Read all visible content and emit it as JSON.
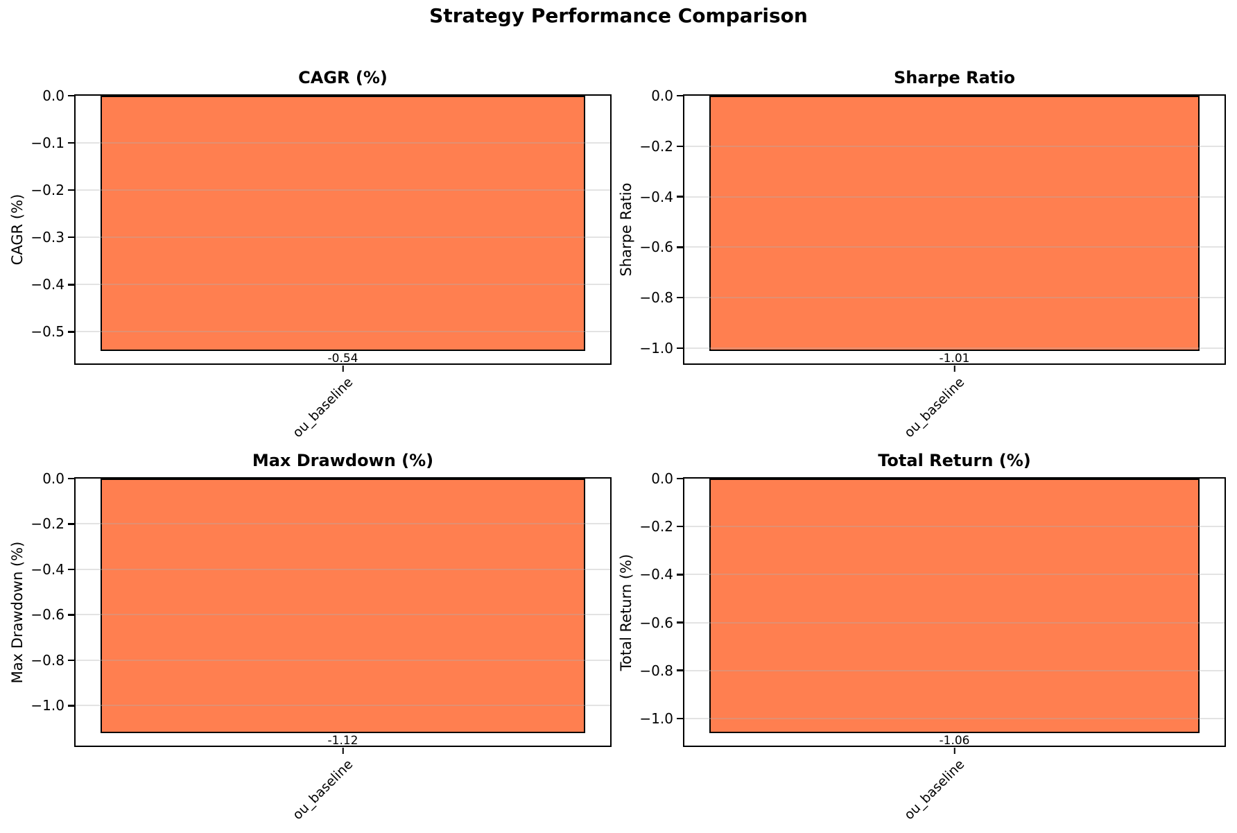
{
  "figure": {
    "suptitle": "Strategy Performance Comparison",
    "background": "#ffffff",
    "bar_color": "#ff7f50",
    "bar_edge_color": "#000000",
    "grid_color": "rgba(176,176,176,0.35)",
    "spine_color": "#000000"
  },
  "chart_data": [
    {
      "type": "bar",
      "title": "CAGR (%)",
      "ylabel": "CAGR (%)",
      "xlabel": "",
      "categories": [
        "ou_baseline"
      ],
      "values": [
        -0.54
      ],
      "value_labels": [
        "-0.54"
      ],
      "yticks": [
        0,
        -0.1,
        -0.2,
        -0.3,
        -0.4,
        -0.5
      ],
      "ytick_labels": [
        "0.0",
        "−0.1",
        "−0.2",
        "−0.3",
        "−0.4",
        "−0.5"
      ],
      "ylim": [
        -0.567,
        0
      ],
      "grid": true,
      "legend_position": "none"
    },
    {
      "type": "bar",
      "title": "Sharpe Ratio",
      "ylabel": "Sharpe Ratio",
      "xlabel": "",
      "categories": [
        "ou_baseline"
      ],
      "values": [
        -1.01
      ],
      "value_labels": [
        "-1.01"
      ],
      "yticks": [
        0,
        -0.2,
        -0.4,
        -0.6,
        -0.8,
        -1.0
      ],
      "ytick_labels": [
        "0.0",
        "−0.2",
        "−0.4",
        "−0.6",
        "−0.8",
        "−1.0"
      ],
      "ylim": [
        -1.0605,
        0
      ],
      "grid": true,
      "legend_position": "none"
    },
    {
      "type": "bar",
      "title": "Max Drawdown (%)",
      "ylabel": "Max Drawdown (%)",
      "xlabel": "",
      "categories": [
        "ou_baseline"
      ],
      "values": [
        -1.12
      ],
      "value_labels": [
        "-1.12"
      ],
      "yticks": [
        0,
        -0.2,
        -0.4,
        -0.6,
        -0.8,
        -1.0
      ],
      "ytick_labels": [
        "0.0",
        "−0.2",
        "−0.4",
        "−0.6",
        "−0.8",
        "−1.0"
      ],
      "ylim": [
        -1.176,
        0
      ],
      "grid": true,
      "legend_position": "none"
    },
    {
      "type": "bar",
      "title": "Total Return (%)",
      "ylabel": "Total Return (%)",
      "xlabel": "",
      "categories": [
        "ou_baseline"
      ],
      "values": [
        -1.06
      ],
      "value_labels": [
        "-1.06"
      ],
      "yticks": [
        0,
        -0.2,
        -0.4,
        -0.6,
        -0.8,
        -1.0
      ],
      "ytick_labels": [
        "0.0",
        "−0.2",
        "−0.4",
        "−0.6",
        "−0.8",
        "−1.0"
      ],
      "ylim": [
        -1.113,
        0
      ],
      "grid": true,
      "legend_position": "none"
    }
  ]
}
